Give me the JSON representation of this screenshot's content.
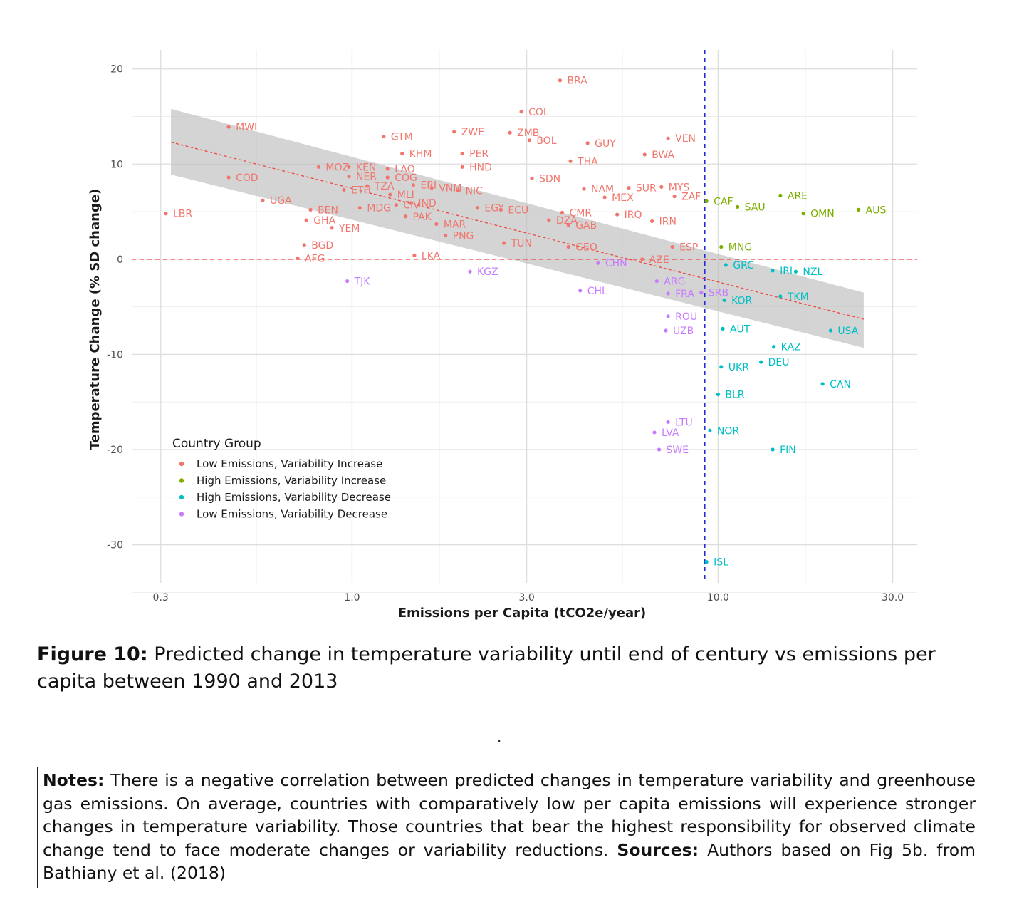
{
  "chart_data": {
    "type": "scatter",
    "xlabel": "Emissions per Capita (tCO2e/year)",
    "ylabel": "Temperature Change (% SD change)",
    "x_scale": "log",
    "xlim": [
      0.25,
      35
    ],
    "ylim": [
      -34,
      22
    ],
    "x_ticks": [
      0.3,
      1.0,
      3.0,
      10.0,
      30.0
    ],
    "x_tick_labels": [
      "0.3",
      "1.0",
      "3.0",
      "10.0",
      "30.0"
    ],
    "y_ticks": [
      20,
      10,
      0,
      -10,
      -20,
      -30
    ],
    "y_tick_labels": [
      "20",
      "10",
      "0",
      "-10",
      "-20",
      "-30"
    ],
    "grid": true,
    "reference_lines": [
      {
        "orientation": "horizontal",
        "value": 0,
        "style": "dashed",
        "color": "#f0463e"
      },
      {
        "orientation": "vertical",
        "value": 9.2,
        "style": "dashed",
        "color": "#2b2bd6"
      }
    ],
    "trend": {
      "style": "dashed",
      "color": "#f0463e",
      "x": [
        0.32,
        25
      ],
      "y": [
        12.3,
        -6.3
      ],
      "band_upper": [
        15.8,
        -3.5
      ],
      "band_lower": [
        8.9,
        -9.3
      ]
    },
    "legend": {
      "title": "Country Group",
      "position": "bottom-left",
      "entries": [
        "Low Emissions, Variability Increase",
        "High Emissions, Variability Increase",
        "High Emissions, Variability Decrease",
        "Low Emissions, Variability Decrease"
      ]
    },
    "series": [
      {
        "name": "Low Emissions, Variability Increase",
        "color": "#f0766d",
        "points": [
          {
            "label": "BRA",
            "x": 3.7,
            "y": 18.8
          },
          {
            "label": "COL",
            "x": 2.9,
            "y": 15.5
          },
          {
            "label": "MWI",
            "x": 0.46,
            "y": 13.9
          },
          {
            "label": "ZWE",
            "x": 1.9,
            "y": 13.4
          },
          {
            "label": "ZMB",
            "x": 2.7,
            "y": 13.3
          },
          {
            "label": "GTM",
            "x": 1.22,
            "y": 12.9
          },
          {
            "label": "VEN",
            "x": 7.3,
            "y": 12.7
          },
          {
            "label": "BOL",
            "x": 3.05,
            "y": 12.5
          },
          {
            "label": "GUY",
            "x": 4.4,
            "y": 12.2
          },
          {
            "label": "KHM",
            "x": 1.37,
            "y": 11.1
          },
          {
            "label": "PER",
            "x": 2.0,
            "y": 11.1
          },
          {
            "label": "BWA",
            "x": 6.3,
            "y": 11.0
          },
          {
            "label": "THA",
            "x": 3.95,
            "y": 10.3
          },
          {
            "label": "MOZ",
            "x": 0.81,
            "y": 9.7
          },
          {
            "label": "KEN",
            "x": 0.98,
            "y": 9.7
          },
          {
            "label": "HND",
            "x": 2.0,
            "y": 9.7
          },
          {
            "label": "LAO",
            "x": 1.25,
            "y": 9.5
          },
          {
            "label": "NER",
            "x": 0.98,
            "y": 8.7
          },
          {
            "label": "COG",
            "x": 1.25,
            "y": 8.6
          },
          {
            "label": "COD",
            "x": 0.46,
            "y": 8.6
          },
          {
            "label": "SDN",
            "x": 3.1,
            "y": 8.5
          },
          {
            "label": "ERI",
            "x": 1.47,
            "y": 7.8
          },
          {
            "label": "TZA",
            "x": 1.1,
            "y": 7.7
          },
          {
            "label": "VNM",
            "x": 1.65,
            "y": 7.5
          },
          {
            "label": "MYS",
            "x": 7.0,
            "y": 7.6
          },
          {
            "label": "SUR",
            "x": 5.7,
            "y": 7.5
          },
          {
            "label": "NAM",
            "x": 4.3,
            "y": 7.4
          },
          {
            "label": "ETH",
            "x": 0.95,
            "y": 7.3
          },
          {
            "label": "NIC",
            "x": 1.95,
            "y": 7.2
          },
          {
            "label": "MLI",
            "x": 1.27,
            "y": 6.8
          },
          {
            "label": "ZAF",
            "x": 7.6,
            "y": 6.6
          },
          {
            "label": "MEX",
            "x": 4.9,
            "y": 6.5
          },
          {
            "label": "UGA",
            "x": 0.57,
            "y": 6.2
          },
          {
            "label": "IND",
            "x": 1.45,
            "y": 5.9
          },
          {
            "label": "CIV",
            "x": 1.32,
            "y": 5.7
          },
          {
            "label": "EGY",
            "x": 2.2,
            "y": 5.4
          },
          {
            "label": "ECU",
            "x": 2.55,
            "y": 5.2
          },
          {
            "label": "MDG",
            "x": 1.05,
            "y": 5.4
          },
          {
            "label": "BEN",
            "x": 0.77,
            "y": 5.2
          },
          {
            "label": "LBR",
            "x": 0.31,
            "y": 4.8
          },
          {
            "label": "CMR",
            "x": 3.75,
            "y": 4.9
          },
          {
            "label": "IRQ",
            "x": 5.3,
            "y": 4.7
          },
          {
            "label": "PAK",
            "x": 1.4,
            "y": 4.5
          },
          {
            "label": "GHA",
            "x": 0.75,
            "y": 4.1
          },
          {
            "label": "DZA",
            "x": 3.45,
            "y": 4.1
          },
          {
            "label": "IRN",
            "x": 6.6,
            "y": 4.0
          },
          {
            "label": "MAR",
            "x": 1.7,
            "y": 3.7
          },
          {
            "label": "GAB",
            "x": 3.9,
            "y": 3.6
          },
          {
            "label": "YEM",
            "x": 0.88,
            "y": 3.3
          },
          {
            "label": "PNG",
            "x": 1.8,
            "y": 2.5
          },
          {
            "label": "TUN",
            "x": 2.6,
            "y": 1.7
          },
          {
            "label": "BGD",
            "x": 0.74,
            "y": 1.5
          },
          {
            "label": "GEO",
            "x": 3.9,
            "y": 1.3
          },
          {
            "label": "ESP",
            "x": 7.5,
            "y": 1.3
          },
          {
            "label": "LKA",
            "x": 1.48,
            "y": 0.4
          },
          {
            "label": "AFG",
            "x": 0.71,
            "y": 0.1
          },
          {
            "label": "AZE",
            "x": 6.2,
            "y": 0.0
          }
        ]
      },
      {
        "name": "High Emissions, Variability Increase",
        "color": "#7cae00",
        "points": [
          {
            "label": "ARE",
            "x": 14.8,
            "y": 6.7
          },
          {
            "label": "CAF",
            "x": 9.3,
            "y": 6.1
          },
          {
            "label": "SAU",
            "x": 11.3,
            "y": 5.5
          },
          {
            "label": "AUS",
            "x": 24.2,
            "y": 5.2
          },
          {
            "label": "OMN",
            "x": 17.1,
            "y": 4.8
          },
          {
            "label": "MNG",
            "x": 10.2,
            "y": 1.3
          }
        ]
      },
      {
        "name": "High Emissions, Variability Decrease",
        "color": "#00bfc4",
        "points": [
          {
            "label": "GRC",
            "x": 10.5,
            "y": -0.6
          },
          {
            "label": "IRL",
            "x": 14.1,
            "y": -1.2
          },
          {
            "label": "NZL",
            "x": 16.3,
            "y": -1.3
          },
          {
            "label": "KOR",
            "x": 10.4,
            "y": -4.3
          },
          {
            "label": "TKM",
            "x": 14.8,
            "y": -3.9
          },
          {
            "label": "AUT",
            "x": 10.3,
            "y": -7.3
          },
          {
            "label": "USA",
            "x": 20.3,
            "y": -7.5
          },
          {
            "label": "KAZ",
            "x": 14.2,
            "y": -9.2
          },
          {
            "label": "DEU",
            "x": 13.1,
            "y": -10.8
          },
          {
            "label": "UKR",
            "x": 10.2,
            "y": -11.3
          },
          {
            "label": "CAN",
            "x": 19.3,
            "y": -13.1
          },
          {
            "label": "BLR",
            "x": 10.0,
            "y": -14.2
          },
          {
            "label": "NOR",
            "x": 9.5,
            "y": -18.0
          },
          {
            "label": "FIN",
            "x": 14.1,
            "y": -20.0
          },
          {
            "label": "ISL",
            "x": 9.3,
            "y": -31.8
          }
        ]
      },
      {
        "name": "Low Emissions, Variability Decrease",
        "color": "#c77cff",
        "points": [
          {
            "label": "TJK",
            "x": 0.97,
            "y": -2.3
          },
          {
            "label": "KGZ",
            "x": 2.1,
            "y": -1.3
          },
          {
            "label": "CHN",
            "x": 4.7,
            "y": -0.4
          },
          {
            "label": "ARG",
            "x": 6.8,
            "y": -2.3
          },
          {
            "label": "CHL",
            "x": 4.2,
            "y": -3.3
          },
          {
            "label": "FRA",
            "x": 7.3,
            "y": -3.6
          },
          {
            "label": "SRB",
            "x": 9.0,
            "y": -3.5
          },
          {
            "label": "ROU",
            "x": 7.3,
            "y": -6.0
          },
          {
            "label": "UZB",
            "x": 7.2,
            "y": -7.5
          },
          {
            "label": "LTU",
            "x": 7.3,
            "y": -17.1
          },
          {
            "label": "LVA",
            "x": 6.7,
            "y": -18.2
          },
          {
            "label": "SWE",
            "x": 6.9,
            "y": -20.0
          }
        ]
      }
    ]
  },
  "figure": {
    "label": "Figure 10:",
    "caption": "Predicted change in temperature variability until end of century vs emissions per capita between 1990 and 2013"
  },
  "stray_mark": ".",
  "notes": {
    "label": "Notes:",
    "text": "There is a negative correlation between predicted changes in temperature variability and greenhouse gas emissions.  On average, countries with comparatively low per capita emissions will experience stronger changes in temperature variability. Those countries that bear the highest responsibility for observed climate change tend to face moderate changes or variability reductions.",
    "sources_label": "Sources:",
    "sources_text": "Authors based on Fig 5b. from Bathiany et al. (2018)"
  }
}
